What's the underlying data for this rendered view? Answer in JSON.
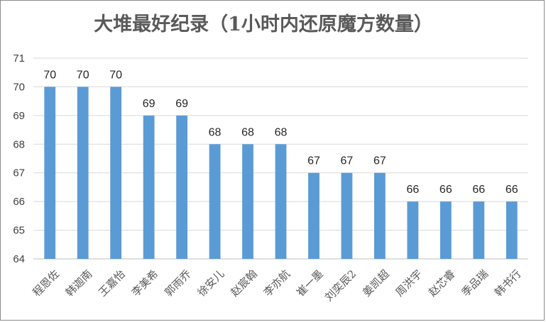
{
  "chart_data": {
    "type": "bar",
    "title": "大堆最好纪录（1小时内还原魔方数量）",
    "xlabel": "",
    "ylabel": "",
    "categories": [
      "程恩佐",
      "韩迦南",
      "王嘉怡",
      "李美希",
      "郭雨乔",
      "徐安儿",
      "赵宸翰",
      "李亦航",
      "崔一墨",
      "刘奕辰2",
      "姜凯超",
      "周洪宇",
      "赵芯睿",
      "季品瑞",
      "韩书行"
    ],
    "values": [
      70,
      70,
      70,
      69,
      69,
      68,
      68,
      68,
      67,
      67,
      67,
      66,
      66,
      66,
      66
    ],
    "ylim": [
      64,
      71
    ],
    "yticks": [
      64,
      65,
      66,
      67,
      68,
      69,
      70,
      71
    ],
    "grid": true,
    "legend": "none",
    "colors": {
      "bar": "#5b9bd5",
      "grid": "#d9d9d9",
      "axis": "#bfbfbf"
    }
  }
}
